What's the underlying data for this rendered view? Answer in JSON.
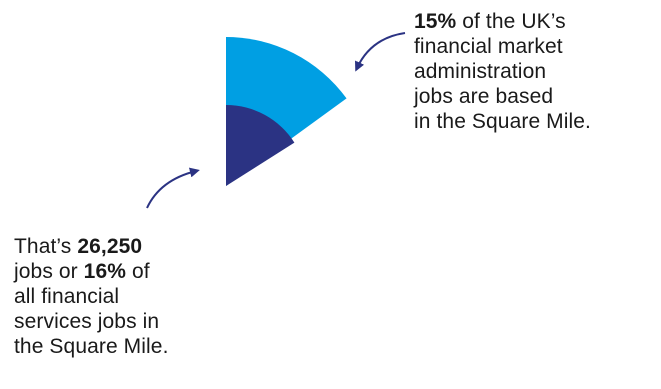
{
  "chart_data": {
    "type": "pie",
    "title": "",
    "slices": [
      {
        "label": "financial market administration jobs based in the Square Mile",
        "value": 15,
        "unit": "%",
        "color": "#009fe3"
      },
      {
        "label": "financial services jobs in the Square Mile",
        "value": 16,
        "unit": "%",
        "jobs": 26250,
        "color": "#2b3383"
      }
    ]
  },
  "colors": {
    "light_blue": "#009fe3",
    "dark_blue": "#2b3383",
    "arrow": "#2b3383",
    "text": "#1a1a1a"
  },
  "callout_top": {
    "highlight": "15%",
    "line1_rest": " of the UK’s",
    "line2": "financial market",
    "line3": "administration",
    "line4": "jobs are based",
    "line5": "in the Square Mile."
  },
  "callout_bottom": {
    "line1_prefix": "That’s ",
    "jobs_highlight": "26,250",
    "line2_prefix": "jobs or ",
    "pct_highlight": "16%",
    "line2_suffix": " of",
    "line3": "all financial",
    "line4": "services jobs in",
    "line5": "the Square Mile."
  }
}
